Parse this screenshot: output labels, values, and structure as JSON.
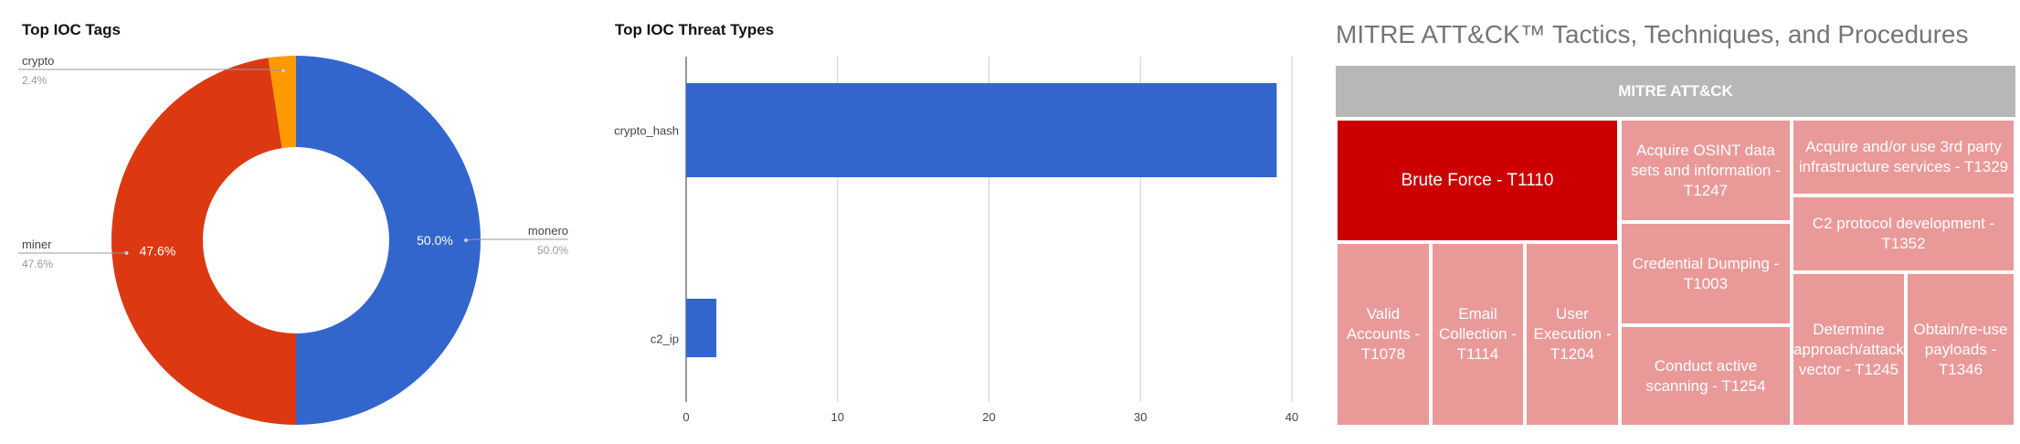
{
  "donut": {
    "title": "Top IOC Tags",
    "chart_data": {
      "type": "pie",
      "title": "Top IOC Tags",
      "donut": true,
      "slices": [
        {
          "label": "monero",
          "value": 50.0,
          "value_label": "50.0%",
          "legend_pct": "50.0%",
          "color": "#3366cc"
        },
        {
          "label": "miner",
          "value": 47.6,
          "value_label": "47.6%",
          "legend_pct": "47.6%",
          "color": "#dc3912"
        },
        {
          "label": "crypto",
          "value": 2.4,
          "value_label": "",
          "legend_pct": "2.4%",
          "color": "#ff9900"
        }
      ]
    }
  },
  "bar": {
    "title": "Top IOC Threat Types",
    "chart_data": {
      "type": "bar",
      "orientation": "horizontal",
      "title": "Top IOC Threat Types",
      "categories": [
        "crypto_hash",
        "c2_ip"
      ],
      "values": [
        39,
        2
      ],
      "xlim": [
        0,
        40
      ],
      "xticks": [
        "0",
        "10",
        "20",
        "30",
        "40"
      ],
      "grid": true,
      "color": "#3366cc"
    }
  },
  "treemap": {
    "title": "MITRE ATT&CK™ Tactics, Techniques, and Procedures",
    "root": "MITRE ATT&CK",
    "cells": [
      {
        "label": "Brute Force - T1110",
        "emphasis": true
      },
      {
        "label": "Valid Accounts - T1078"
      },
      {
        "label": "Email Collection - T1114"
      },
      {
        "label": "User Execution - T1204"
      },
      {
        "label": "Acquire OSINT data sets and information - T1247"
      },
      {
        "label": "Credential Dumping - T1003"
      },
      {
        "label": "Conduct active scanning - T1254"
      },
      {
        "label": "Acquire and/or use 3rd party infrastructure services - T1329"
      },
      {
        "label": "C2 protocol development - T1352"
      },
      {
        "label": "Determine approach/attack vector - T1245"
      },
      {
        "label": "Obtain/re-use payloads - T1346"
      }
    ],
    "colors": {
      "emphasis": "#cc0000",
      "normal": "#ea9999",
      "header": "#b7b7b7"
    }
  }
}
